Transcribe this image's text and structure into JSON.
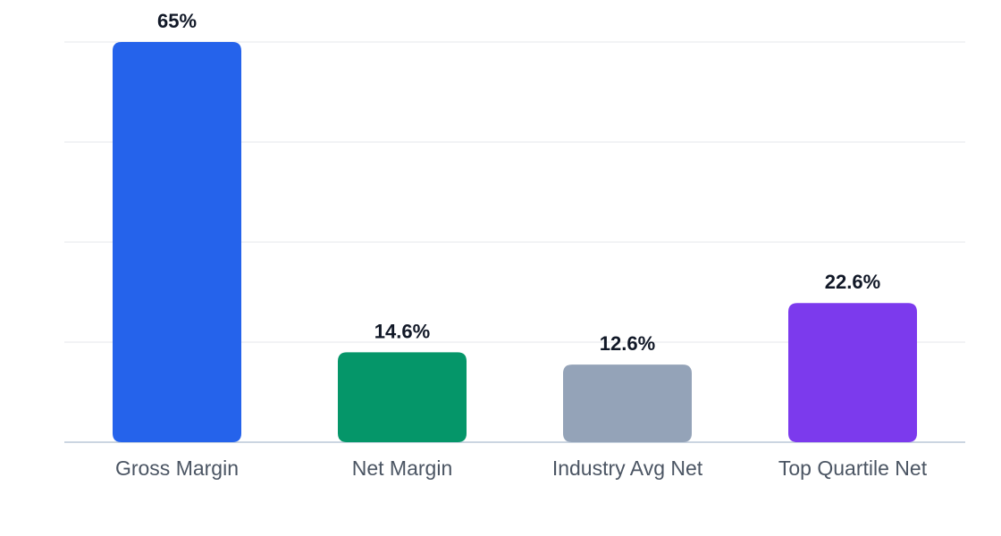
{
  "chart_data": {
    "type": "bar",
    "categories": [
      "Gross Margin",
      "Net Margin",
      "Industry Avg Net",
      "Top Quartile Net"
    ],
    "values": [
      65,
      14.6,
      12.6,
      22.6
    ],
    "data_labels": [
      "65%",
      "14.6%",
      "12.6%",
      "22.6%"
    ],
    "colors": [
      "#2563eb",
      "#059669",
      "#94a3b8",
      "#7c3aed"
    ],
    "ylim": [
      0,
      65
    ],
    "grid": true,
    "legend": false
  }
}
